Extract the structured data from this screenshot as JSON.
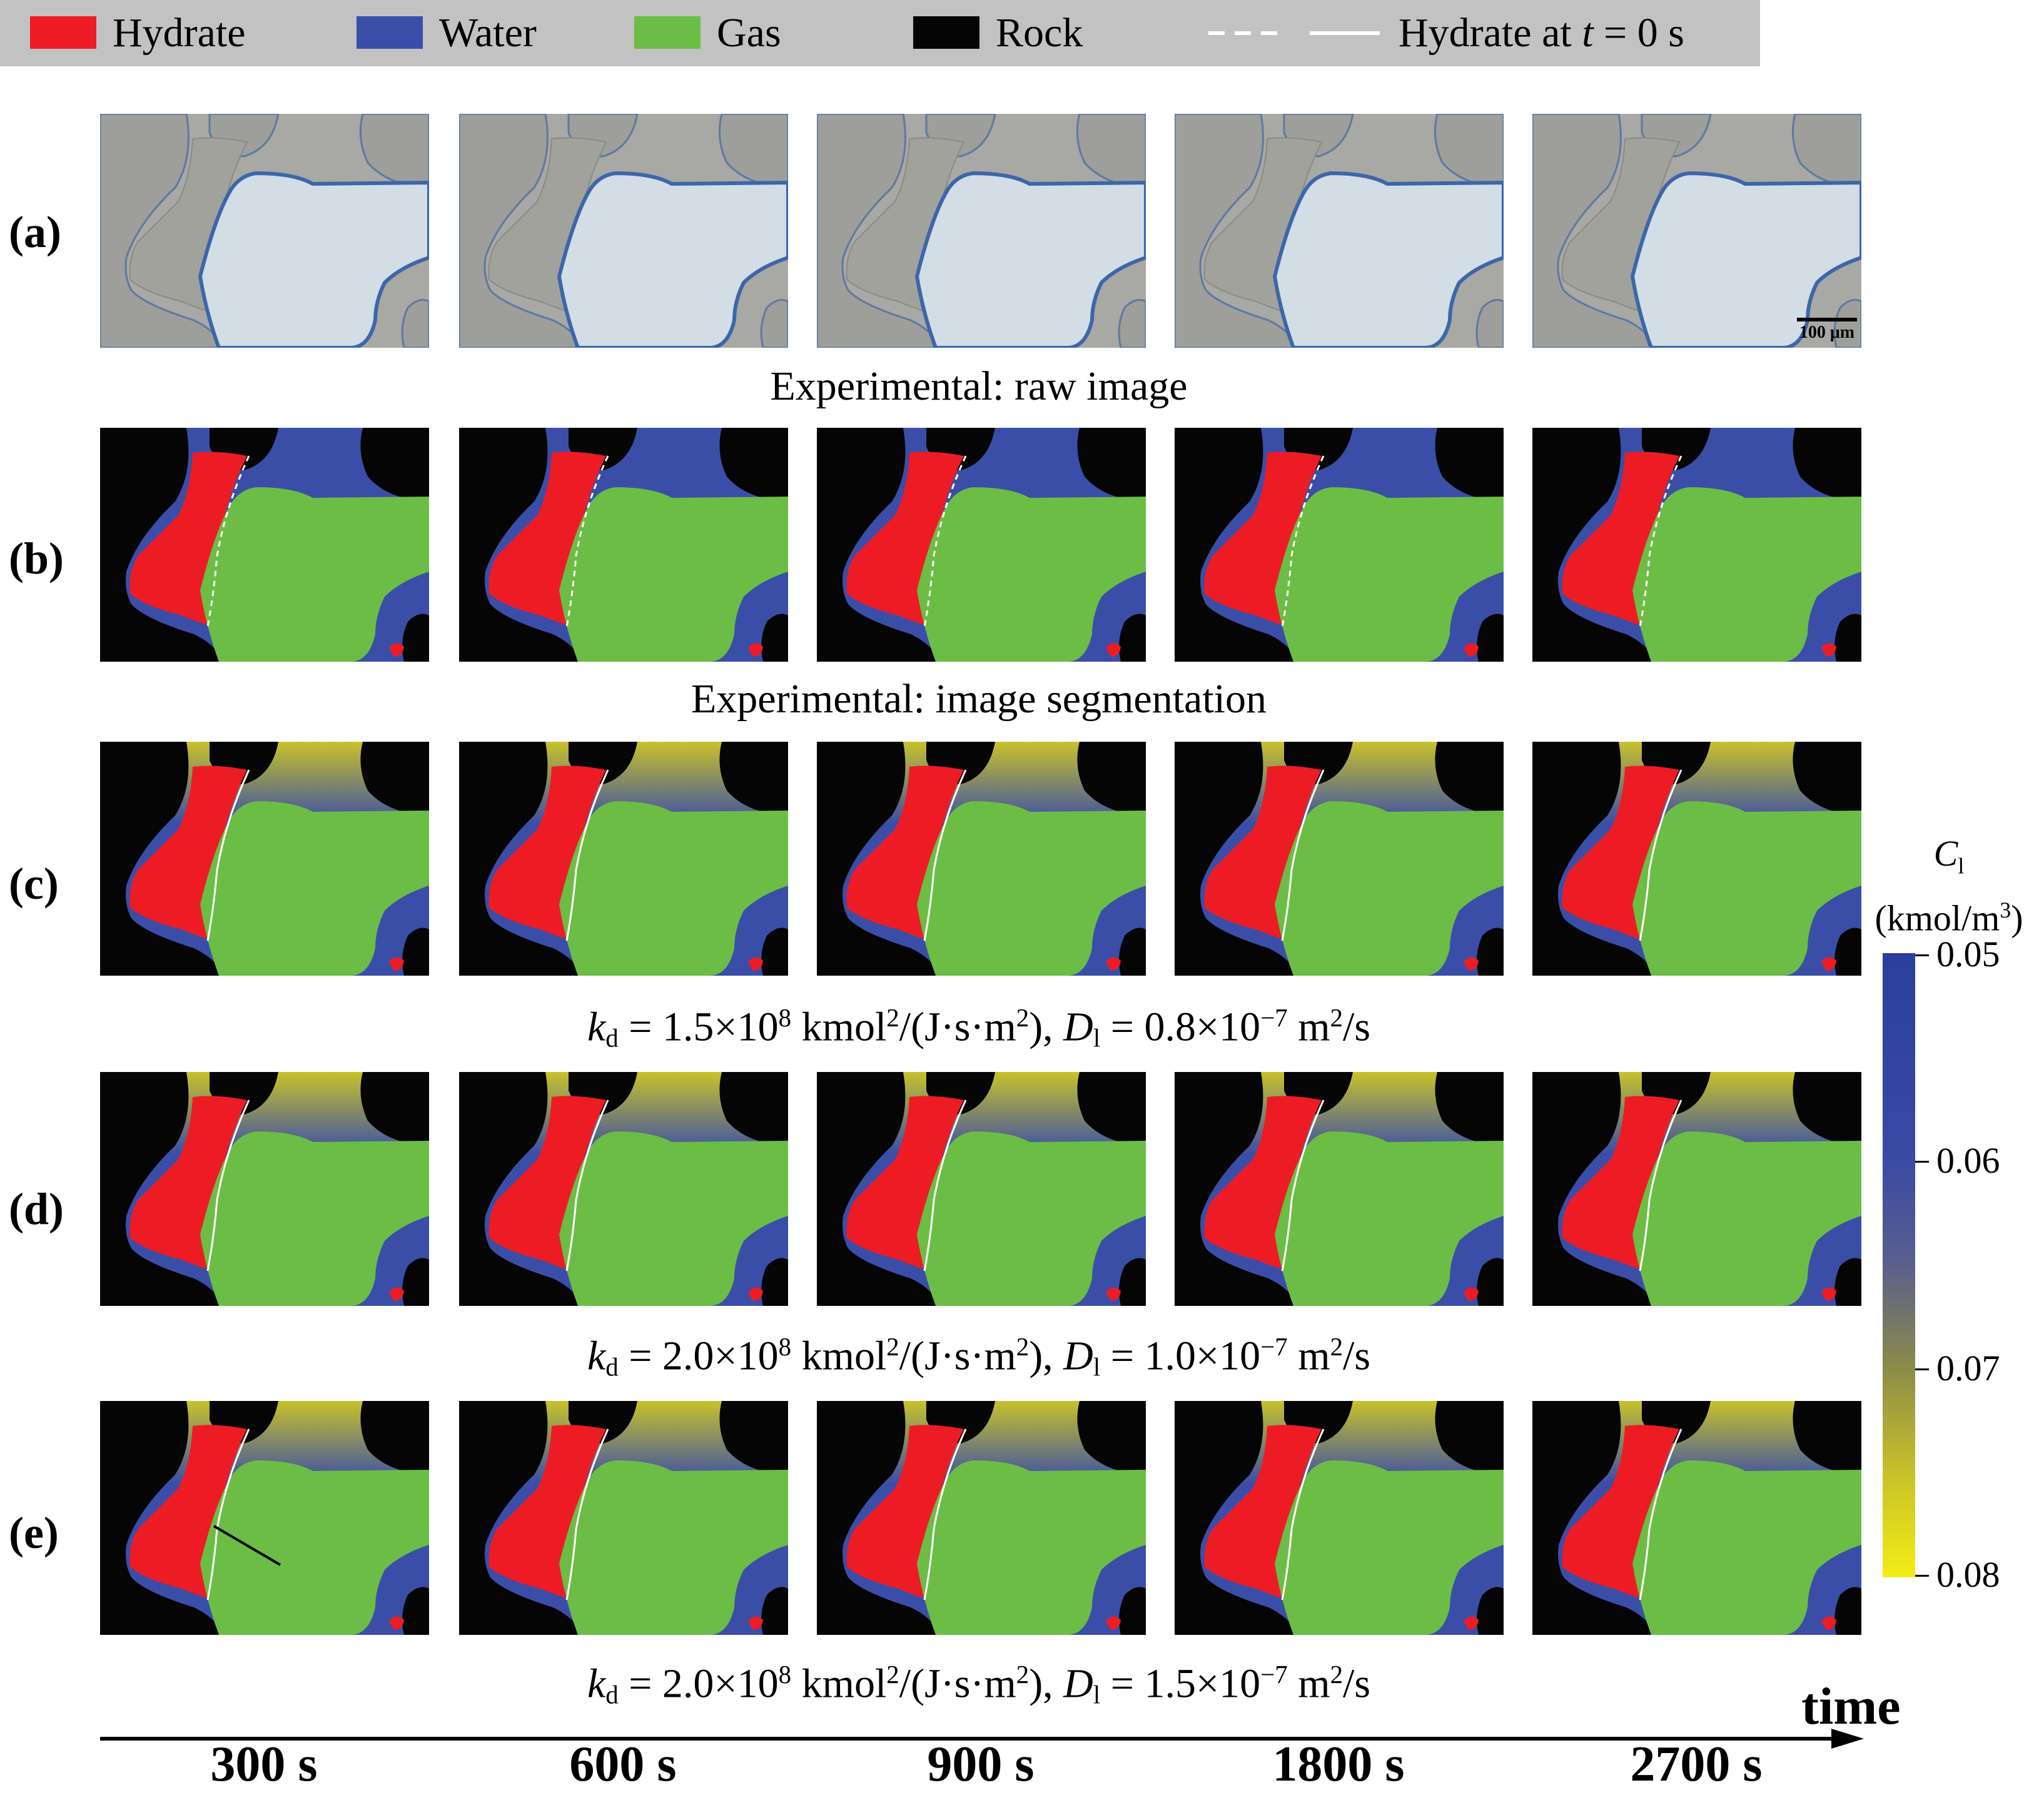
{
  "legend": {
    "items": [
      {
        "label": "Hydrate",
        "color": "#ed1c24"
      },
      {
        "label": "Water",
        "color": "#3a4ea8"
      },
      {
        "label": "Gas",
        "color": "#6cbd45"
      },
      {
        "label": "Rock",
        "color": "#050505"
      }
    ],
    "line_label_prefix": "Hydrate at ",
    "line_label_var": "t",
    "line_label_suffix": " = 0 s"
  },
  "rows": [
    {
      "label": "(a)",
      "type": "raw",
      "caption": "Experimental: raw image"
    },
    {
      "label": "(b)",
      "type": "seg",
      "caption": "Experimental: image segmentation"
    },
    {
      "label": "(c)",
      "type": "sim",
      "kd": "1.5×10",
      "D": "0.8×10"
    },
    {
      "label": "(d)",
      "type": "sim",
      "kd": "2.0×10",
      "D": "1.0×10"
    },
    {
      "label": "(e)",
      "type": "sim",
      "kd": "2.0×10",
      "D": "1.5×10"
    }
  ],
  "caption_parts": {
    "k": "k",
    "k_sub": "d",
    "eq": " = ",
    "kd_exp": "8",
    "kd_unit_a": " kmol",
    "kd_unit_sup": "2",
    "kd_unit_b": "/(J·s·m",
    "kd_unit_sup2": "2",
    "kd_unit_c": "), ",
    "D": "D",
    "D_sub": "l",
    "D_exp": "−7",
    "D_unit_a": " m",
    "D_unit_sup": "2",
    "D_unit_b": "/s"
  },
  "scale_bar": "100 μm",
  "times": [
    "300 s",
    "600 s",
    "900 s",
    "1800 s",
    "2700 s"
  ],
  "axis_label": "time",
  "colorbar": {
    "var": "C",
    "var_sub": "l",
    "unit_a": "(kmol/m",
    "unit_sup": "3",
    "unit_b": ")",
    "ticks": [
      "0.05",
      "0.06",
      "0.07",
      "0.08"
    ]
  }
}
